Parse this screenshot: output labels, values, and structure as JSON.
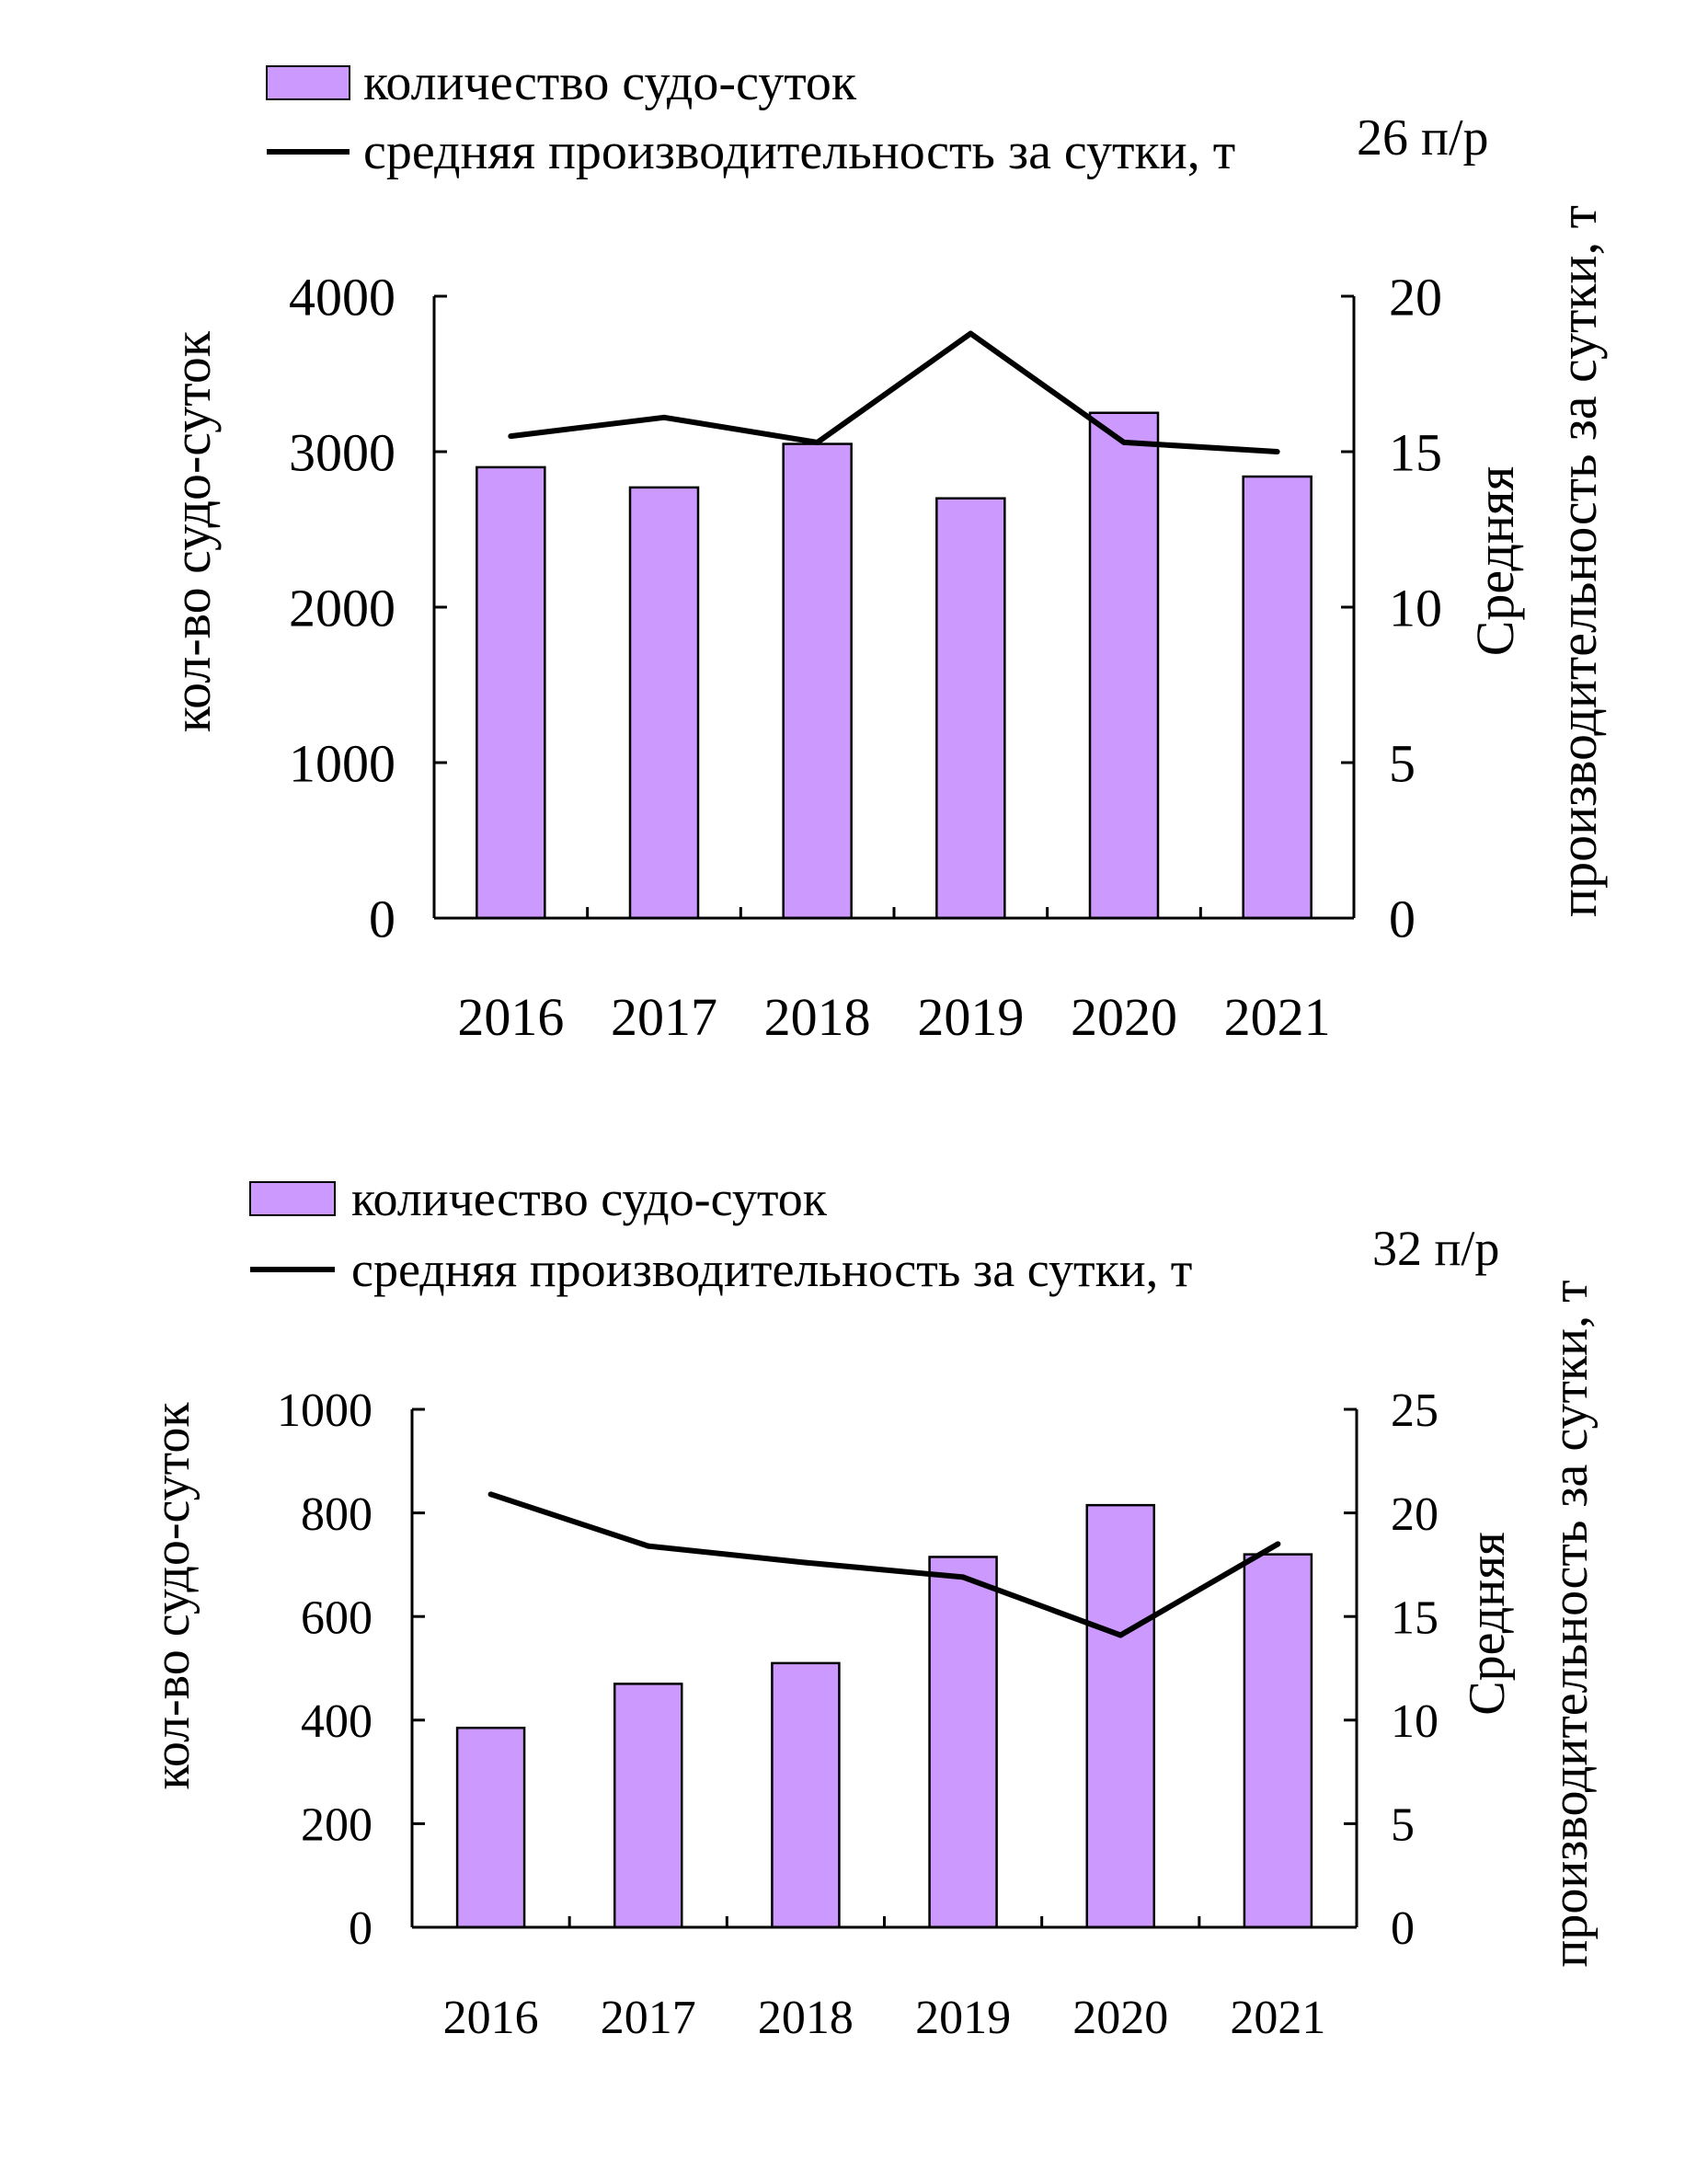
{
  "chart_data": [
    {
      "type": "bar",
      "title": "26 п/р",
      "categories": [
        "2016",
        "2017",
        "2018",
        "2019",
        "2020",
        "2021"
      ],
      "series": [
        {
          "name": "количество судо-суток",
          "type": "bar",
          "axis": "left",
          "values": [
            2900,
            2770,
            3050,
            2700,
            3250,
            2840
          ]
        },
        {
          "name": "средняя производительность за сутки, т",
          "type": "line",
          "axis": "right",
          "values": [
            15.5,
            16.1,
            15.3,
            18.8,
            15.3,
            15.0
          ]
        }
      ],
      "ylabel": "кол-во судо-суток",
      "y2label": "Средняя производительность за сутки, т",
      "ylim": [
        0,
        4000
      ],
      "y2lim": [
        0,
        20
      ],
      "yticks": [
        "0",
        "1000",
        "2000",
        "3000",
        "4000"
      ],
      "y2ticks": [
        "0",
        "5",
        "10",
        "15",
        "20"
      ],
      "legend": "top-left",
      "grid": false
    },
    {
      "type": "bar",
      "title": "32 п/р",
      "categories": [
        "2016",
        "2017",
        "2018",
        "2019",
        "2020",
        "2021"
      ],
      "series": [
        {
          "name": "количество судо-суток",
          "type": "bar",
          "axis": "left",
          "values": [
            385,
            470,
            510,
            715,
            815,
            720
          ]
        },
        {
          "name": "средняя производительность за сутки, т",
          "type": "line",
          "axis": "right",
          "values": [
            20.9,
            18.4,
            17.6,
            16.9,
            14.1,
            18.5
          ]
        }
      ],
      "ylabel": "кол-во судо-суток",
      "y2label": "Средняя производительность за сутки, т",
      "ylim": [
        0,
        1000
      ],
      "y2lim": [
        0,
        25
      ],
      "yticks": [
        "0",
        "200",
        "400",
        "600",
        "800",
        "1000"
      ],
      "y2ticks": [
        "0",
        "5",
        "10",
        "15",
        "20",
        "25"
      ],
      "legend": "top-left",
      "grid": false
    }
  ],
  "colors": {
    "bar_fill": "#cc99ff",
    "bar_stroke": "#000000",
    "line": "#000000",
    "axis": "#000000"
  }
}
